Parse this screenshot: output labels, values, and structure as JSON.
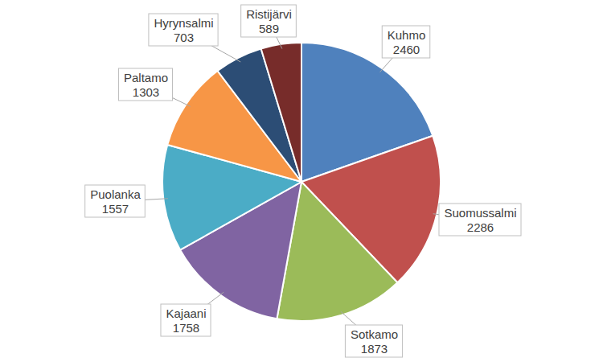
{
  "chart_data": {
    "type": "pie",
    "categories": [
      "Kuhmo",
      "Suomussalmi",
      "Sotkamo",
      "Kajaani",
      "Puolanka",
      "Paltamo",
      "Hyrynsalmi",
      "Ristijärvi"
    ],
    "values": [
      2460,
      2286,
      1873,
      1758,
      1557,
      1303,
      703,
      589
    ],
    "colors": [
      "#4f81bd",
      "#c0504d",
      "#9bbb59",
      "#8064a2",
      "#4bacc6",
      "#f79646",
      "#2c4d75",
      "#772c2a"
    ],
    "data_labels": true
  }
}
